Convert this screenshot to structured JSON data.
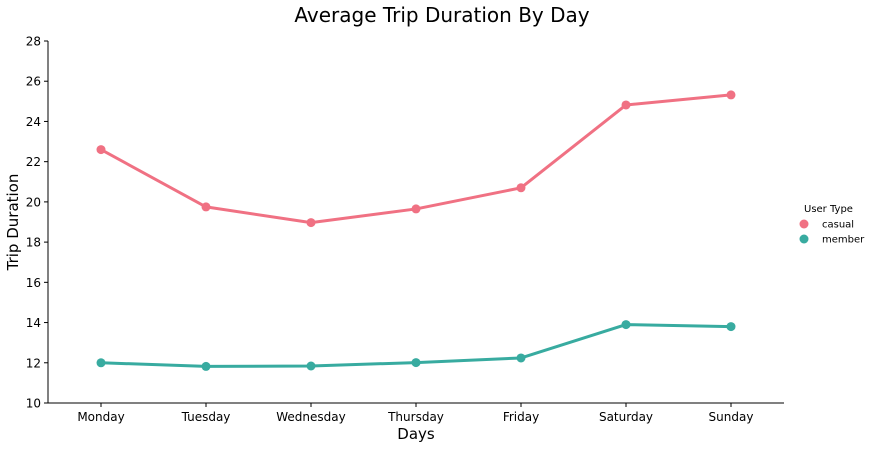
{
  "chart_data": {
    "type": "line",
    "title": "Average Trip Duration By Day",
    "xlabel": "Days",
    "ylabel": "Trip Duration",
    "categories": [
      "Monday",
      "Tuesday",
      "Wednesday",
      "Thursday",
      "Friday",
      "Saturday",
      "Sunday"
    ],
    "ylim": [
      10,
      28
    ],
    "yticks": [
      "10",
      "12",
      "14",
      "16",
      "18",
      "20",
      "22",
      "24",
      "26",
      "28"
    ],
    "grid": false,
    "legend": {
      "title": "User Type",
      "placement": "center-right"
    },
    "series": [
      {
        "name": "casual",
        "color": "#f07183",
        "values": [
          22.6,
          19.75,
          18.97,
          19.65,
          20.7,
          24.82,
          25.32
        ]
      },
      {
        "name": "member",
        "color": "#38aba0",
        "values": [
          12.0,
          11.82,
          11.84,
          12.01,
          12.24,
          13.9,
          13.8
        ]
      }
    ]
  }
}
